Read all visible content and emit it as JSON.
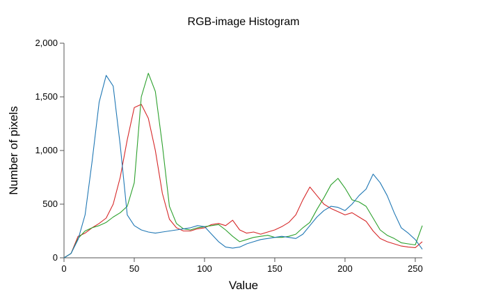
{
  "chart_data": {
    "type": "line",
    "title": "RGB-image Histogram",
    "xlabel": "Value",
    "ylabel": "Number of pixels",
    "xlim": [
      0,
      255
    ],
    "ylim": [
      0,
      2000
    ],
    "xticks": [
      0,
      50,
      100,
      150,
      200,
      250
    ],
    "xtick_labels": [
      "0",
      "50",
      "100",
      "150",
      "200",
      "250"
    ],
    "yticks": [
      0,
      500,
      1000,
      1500,
      2000
    ],
    "ytick_labels": [
      "0",
      "500",
      "1,000",
      "1,500",
      "2,000"
    ],
    "grid": false,
    "legend": "none",
    "x": [
      0,
      5,
      10,
      15,
      20,
      25,
      30,
      35,
      40,
      45,
      50,
      55,
      60,
      65,
      70,
      75,
      80,
      85,
      90,
      95,
      100,
      105,
      110,
      115,
      120,
      125,
      130,
      135,
      140,
      145,
      150,
      155,
      160,
      165,
      170,
      175,
      180,
      185,
      190,
      195,
      200,
      205,
      210,
      215,
      220,
      225,
      230,
      235,
      240,
      245,
      250,
      255
    ],
    "series": [
      {
        "color": "#d62728",
        "values": [
          0,
          40,
          200,
          230,
          280,
          320,
          370,
          500,
          750,
          1100,
          1400,
          1430,
          1300,
          1000,
          600,
          360,
          280,
          250,
          250,
          270,
          280,
          310,
          320,
          300,
          350,
          260,
          230,
          240,
          220,
          240,
          260,
          290,
          330,
          400,
          540,
          660,
          580,
          500,
          460,
          430,
          400,
          420,
          380,
          340,
          250,
          180,
          150,
          130,
          110,
          100,
          95,
          150
        ]
      },
      {
        "color": "#2ca02c",
        "values": [
          0,
          40,
          180,
          250,
          280,
          300,
          330,
          380,
          420,
          480,
          700,
          1500,
          1720,
          1550,
          1050,
          480,
          320,
          270,
          260,
          280,
          290,
          300,
          310,
          260,
          200,
          150,
          170,
          190,
          200,
          210,
          190,
          190,
          200,
          220,
          280,
          330,
          450,
          560,
          680,
          740,
          650,
          540,
          520,
          480,
          370,
          260,
          210,
          180,
          140,
          130,
          120,
          300
        ]
      },
      {
        "color": "#1f77b4",
        "values": [
          0,
          40,
          170,
          400,
          900,
          1450,
          1700,
          1600,
          1050,
          400,
          300,
          260,
          240,
          230,
          240,
          250,
          260,
          270,
          280,
          300,
          290,
          220,
          150,
          100,
          90,
          100,
          130,
          150,
          170,
          180,
          190,
          200,
          190,
          180,
          220,
          300,
          380,
          440,
          480,
          470,
          440,
          500,
          580,
          640,
          780,
          700,
          580,
          420,
          280,
          230,
          170,
          80
        ]
      }
    ]
  }
}
